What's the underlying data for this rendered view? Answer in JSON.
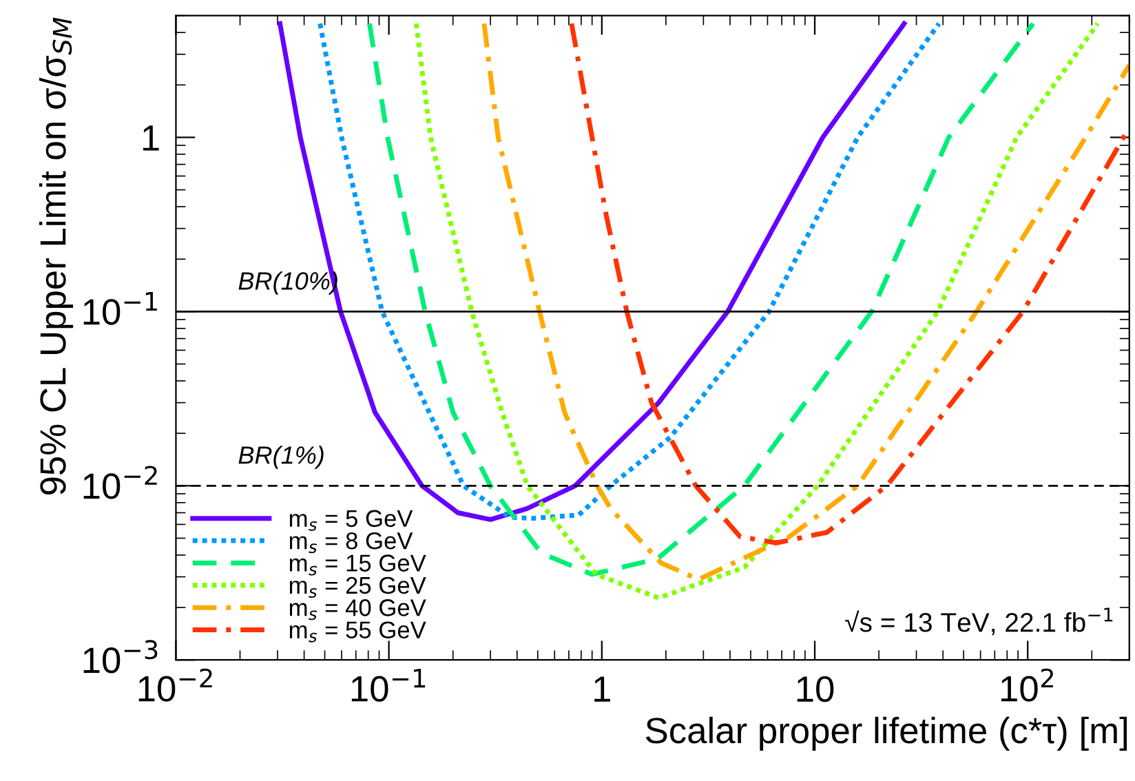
{
  "chart_data": {
    "type": "line",
    "xlabel": "Scalar proper lifetime (c*τ) [m]",
    "ylabel": "95% CL Upper Limit on σ/σ$_{SM}$",
    "log": "xy",
    "xlim": [
      0.01,
      300
    ],
    "ylim": [
      0.001,
      5
    ],
    "xticks": [
      {
        "value": 0.01,
        "label": "10$^{−2}$"
      },
      {
        "value": 0.1,
        "label": "10$^{−1}$"
      },
      1,
      10,
      {
        "value": 100,
        "label": "10$^{2}$"
      }
    ],
    "yticks": [
      {
        "value": 0.001,
        "label": "10$^{−3}$"
      },
      {
        "value": 0.01,
        "label": "10$^{−2}$"
      },
      {
        "value": 0.1,
        "label": "10$^{−1}$"
      },
      1
    ],
    "grid": false,
    "legend": "bottom left",
    "ref_lines": [
      {
        "axis": "y",
        "value": 0.1,
        "label": "BR(10%)",
        "line_style": "solid"
      },
      {
        "axis": "y",
        "value": 0.01,
        "label": "BR(1%)",
        "line_style": "dashed"
      }
    ],
    "annotations": [
      "√s = 13 TeV, 22.1 fb$^{−1}$"
    ],
    "series": [
      {
        "name": "m$_{s}$ = 5 GeV",
        "color": "#6600ff",
        "line_style": "solid",
        "x": [
          0.0308,
          0.0384,
          0.0593,
          0.079,
          0.086,
          0.143,
          0.211,
          0.3,
          0.446,
          0.75,
          1.85,
          3.9,
          10.9,
          26.3
        ],
        "values": [
          4.5,
          1,
          0.1,
          0.036,
          0.0264,
          0.01,
          0.007,
          0.0064,
          0.0074,
          0.01,
          0.03,
          0.1,
          1,
          4.5
        ]
      },
      {
        "name": "m$_{s}$ = 8 GeV",
        "color": "#0099ff",
        "line_style": "dotted",
        "x": [
          0.0475,
          0.06,
          0.093,
          0.224,
          0.37,
          0.47,
          0.78,
          1.1,
          2.1,
          6.1,
          15.9,
          38.3
        ],
        "values": [
          4.5,
          1,
          0.1,
          0.01,
          0.0066,
          0.0065,
          0.0068,
          0.01,
          0.019,
          0.1,
          1,
          4.5
        ]
      },
      {
        "name": "m$_{s}$ = 15 GeV",
        "color": "#00ee77",
        "line_style": "dashed",
        "x": [
          0.0811,
          0.0986,
          0.148,
          0.2,
          0.3,
          0.52,
          0.9,
          1.82,
          4.67,
          18.5,
          42.6,
          106
        ],
        "values": [
          4.5,
          1,
          0.1,
          0.0264,
          0.01,
          0.0041,
          0.0031,
          0.0038,
          0.01,
          0.1,
          1,
          4.5
        ]
      },
      {
        "name": "m$_{s}$ = 25 GeV",
        "color": "#80ff00",
        "line_style": "dotted",
        "x": [
          0.1344,
          0.157,
          0.245,
          0.34,
          0.447,
          0.94,
          1.85,
          4.67,
          10.3,
          37.8,
          88.7,
          213
        ],
        "values": [
          4.5,
          1,
          0.1,
          0.0264,
          0.01,
          0.0031,
          0.00227,
          0.0034,
          0.01,
          0.1,
          1,
          4.5
        ]
      },
      {
        "name": "m$_{s}$ = 40 GeV",
        "color": "#ffaa00",
        "line_style": "dashdot",
        "x": [
          0.28,
          0.326,
          0.51,
          0.668,
          0.95,
          1.1,
          1.9,
          2.85,
          7.6,
          15.9,
          57.5,
          187,
          300
        ],
        "values": [
          4.5,
          1,
          0.1,
          0.0264,
          0.01,
          0.0074,
          0.0036,
          0.0029,
          0.0051,
          0.01,
          0.1,
          1,
          2.6
        ]
      },
      {
        "name": "m$_{s}$ = 55 GeV",
        "color": "#ff3300",
        "line_style": "dashdot",
        "x": [
          0.721,
          0.9,
          1.05,
          1.31,
          1.71,
          2.76,
          4.46,
          6.6,
          11.4,
          21.8,
          95,
          300
        ],
        "values": [
          4.5,
          1,
          0.355,
          0.1,
          0.03,
          0.01,
          0.0051,
          0.0047,
          0.0054,
          0.01,
          0.1,
          1.14
        ]
      }
    ]
  }
}
